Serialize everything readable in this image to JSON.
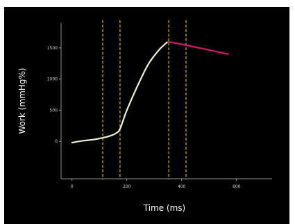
{
  "chart_data": {
    "type": "line",
    "title": "",
    "xlabel": "Time (ms)",
    "ylabel": "Work (mmHg%)",
    "xlim": [
      -40,
      730
    ],
    "ylim": [
      -600,
      1900
    ],
    "x_ticks": [
      0,
      200,
      400,
      600
    ],
    "x_tick_labels": [
      "0",
      "200",
      "400",
      "600"
    ],
    "y_ticks": [
      0,
      500,
      1000,
      1500
    ],
    "y_tick_labels": [
      "0",
      "500",
      "1000",
      "1500"
    ],
    "grid": false,
    "legend": "none",
    "vlines": [
      112,
      175,
      353,
      416
    ],
    "series": [
      {
        "color": "#f0f0d0",
        "x": [
          0,
          40,
          80,
          115,
          140,
          160,
          175,
          200,
          240,
          280,
          320,
          350
        ],
        "y": [
          -20,
          10,
          30,
          60,
          90,
          130,
          200,
          500,
          900,
          1250,
          1480,
          1600
        ]
      },
      {
        "color": "#d0186a",
        "x": [
          350,
          420,
          570
        ],
        "y": [
          1600,
          1540,
          1400
        ]
      }
    ],
    "colors": {
      "background": "#000000",
      "axis": "#bbbbbb",
      "vline": "#d4a017"
    }
  }
}
